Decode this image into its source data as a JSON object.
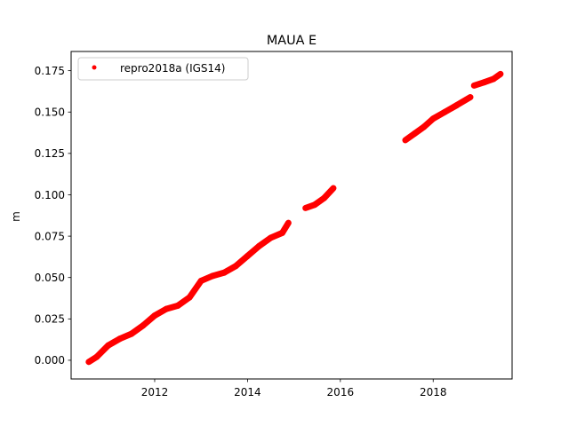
{
  "chart_data": {
    "type": "scatter",
    "title": "MAUA E",
    "xlabel": "",
    "ylabel": "m",
    "xlim": [
      2010.2,
      2019.7
    ],
    "ylim": [
      -0.0113,
      0.1866
    ],
    "xticks": [
      2012,
      2014,
      2016,
      2018
    ],
    "xtick_labels": [
      "2012",
      "2014",
      "2016",
      "2018"
    ],
    "yticks": [
      0.0,
      0.025,
      0.05,
      0.075,
      0.1,
      0.125,
      0.15,
      0.175
    ],
    "ytick_labels": [
      "0.000",
      "0.025",
      "0.050",
      "0.075",
      "0.100",
      "0.125",
      "0.150",
      "0.175"
    ],
    "grid": false,
    "legend": {
      "placement": "upper-left",
      "entries": [
        "repro2018a (IGS14)"
      ]
    },
    "series": [
      {
        "name": "repro2018a (IGS14)",
        "color": "#ff0000",
        "marker": "circle",
        "segments": [
          {
            "x": [
              2010.58,
              2010.75,
              2011.0,
              2011.25,
              2011.5,
              2011.75,
              2012.0,
              2012.25,
              2012.5,
              2012.75,
              2013.0,
              2013.25,
              2013.5,
              2013.75,
              2014.0,
              2014.25,
              2014.5,
              2014.75,
              2014.88
            ],
            "y": [
              -0.001,
              0.002,
              0.009,
              0.013,
              0.016,
              0.021,
              0.027,
              0.031,
              0.033,
              0.038,
              0.048,
              0.051,
              0.053,
              0.057,
              0.063,
              0.069,
              0.074,
              0.077,
              0.083
            ]
          },
          {
            "x": [
              2015.25,
              2015.45,
              2015.65,
              2015.85
            ],
            "y": [
              0.092,
              0.094,
              0.098,
              0.104
            ]
          },
          {
            "x": [
              2017.4,
              2017.6,
              2017.8,
              2018.0,
              2018.25,
              2018.5,
              2018.8
            ],
            "y": [
              0.133,
              0.137,
              0.141,
              0.146,
              0.15,
              0.154,
              0.159
            ]
          },
          {
            "x": [
              2018.88,
              2019.1,
              2019.3,
              2019.45
            ],
            "y": [
              0.166,
              0.168,
              0.17,
              0.173
            ]
          }
        ]
      }
    ]
  }
}
